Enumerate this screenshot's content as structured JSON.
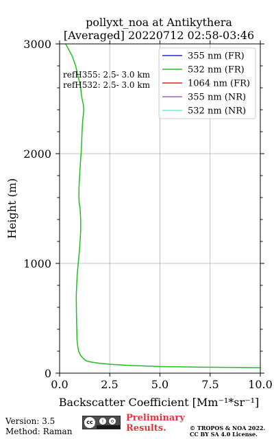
{
  "chart_data": {
    "type": "line",
    "title": [
      "pollyxt_noa at Antikythera",
      "[Averaged] 20220712 02:58-03:46"
    ],
    "xlabel": "Backscatter Coefficient [Mm⁻¹*sr⁻¹]",
    "ylabel": "Height (m)",
    "xlim": [
      0,
      10
    ],
    "ylim": [
      0,
      3000
    ],
    "xticks": [
      "0.0",
      "2.5",
      "5.0",
      "7.5",
      "10.0"
    ],
    "yticks": [
      "0",
      "1000",
      "2000",
      "3000"
    ],
    "grid": true,
    "legend_position": "top-right",
    "legend": [
      "355 nm (FR)",
      "532 nm (FR)",
      "1064 nm (FR)",
      "355 nm (NR)",
      "532 nm (NR)"
    ],
    "colors": [
      "#2323d8",
      "#1fbf1f",
      "#d62626",
      "#a15cd6",
      "#5ff2d2"
    ],
    "reference_text": [
      "refH355:  2.5- 3.0 km",
      "refH532:  2.5- 3.0 km"
    ],
    "series": [
      {
        "name": "532 nm (FR)",
        "color": "#1fbf1f",
        "x": [
          10.0,
          7.0,
          5.0,
          3.5,
          2.6,
          2.0,
          1.6,
          1.35,
          1.2,
          1.05,
          0.95,
          0.9,
          0.87,
          0.86,
          0.85,
          0.84,
          0.83,
          0.85,
          0.88,
          0.93,
          0.98,
          1.02,
          1.05,
          1.05,
          1.02,
          0.98,
          0.96,
          0.97,
          1.0,
          1.03,
          1.07,
          1.1,
          1.12,
          1.15,
          1.18,
          1.2,
          1.18,
          1.12,
          1.08,
          1.05,
          1.0,
          0.92,
          0.8,
          0.65,
          0.45,
          0.3
        ],
        "y": [
          50,
          55,
          60,
          70,
          80,
          90,
          100,
          110,
          130,
          160,
          200,
          250,
          300,
          380,
          450,
          550,
          700,
          800,
          900,
          1000,
          1100,
          1200,
          1300,
          1400,
          1500,
          1550,
          1600,
          1700,
          1800,
          1900,
          2000,
          2100,
          2200,
          2300,
          2350,
          2400,
          2450,
          2500,
          2550,
          2600,
          2650,
          2700,
          2800,
          2880,
          2950,
          3000
        ]
      }
    ]
  },
  "footer": {
    "version": "Version: 3.5",
    "method": "Method: Raman",
    "preliminary": [
      "Preliminary",
      "Results."
    ],
    "copyright": [
      "© TROPOS & NOA 2022.",
      "CC BY SA 4.0 License."
    ]
  }
}
